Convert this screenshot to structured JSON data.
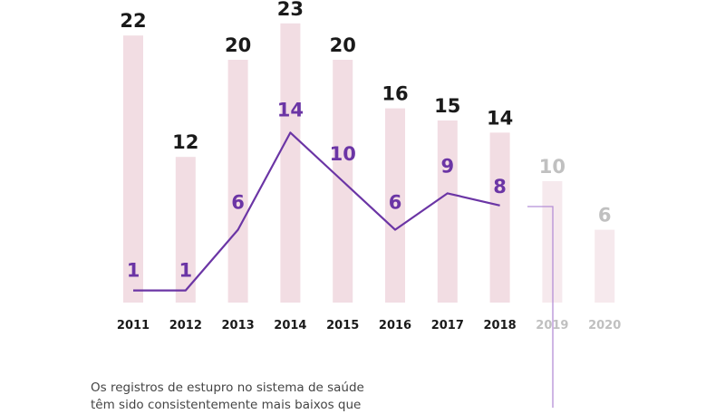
{
  "chart_data": {
    "type": "bar",
    "categories": [
      "2011",
      "2012",
      "2013",
      "2014",
      "2015",
      "2016",
      "2017",
      "2018",
      "2019",
      "2020"
    ],
    "series": [
      {
        "name": "bars",
        "kind": "bar",
        "values": [
          22,
          12,
          20,
          23,
          20,
          16,
          15,
          14,
          10,
          6
        ]
      },
      {
        "name": "line",
        "kind": "line",
        "values": [
          1,
          1,
          6,
          14,
          10,
          6,
          9,
          8,
          null,
          null
        ]
      }
    ],
    "highlighted_categories": [
      "2011",
      "2012",
      "2013",
      "2014",
      "2015",
      "2016",
      "2017",
      "2018"
    ],
    "faded_categories": [
      "2019",
      "2020"
    ],
    "title": "",
    "xlabel": "",
    "ylabel": "",
    "ylim": [
      0,
      25
    ],
    "grid": false
  },
  "annotation": {
    "text": "Os registros de estupro no sistema de saúde têm sido consistentemente mais baixos que"
  },
  "colors": {
    "bar": "#f2dde3",
    "bar_faded": "#f6e9ed",
    "line": "#6b35a5",
    "bar_label": "#1a1a1a",
    "faded_label": "#c0c0c0",
    "line_label": "#6b35a5",
    "connector": "#b58fd6"
  }
}
